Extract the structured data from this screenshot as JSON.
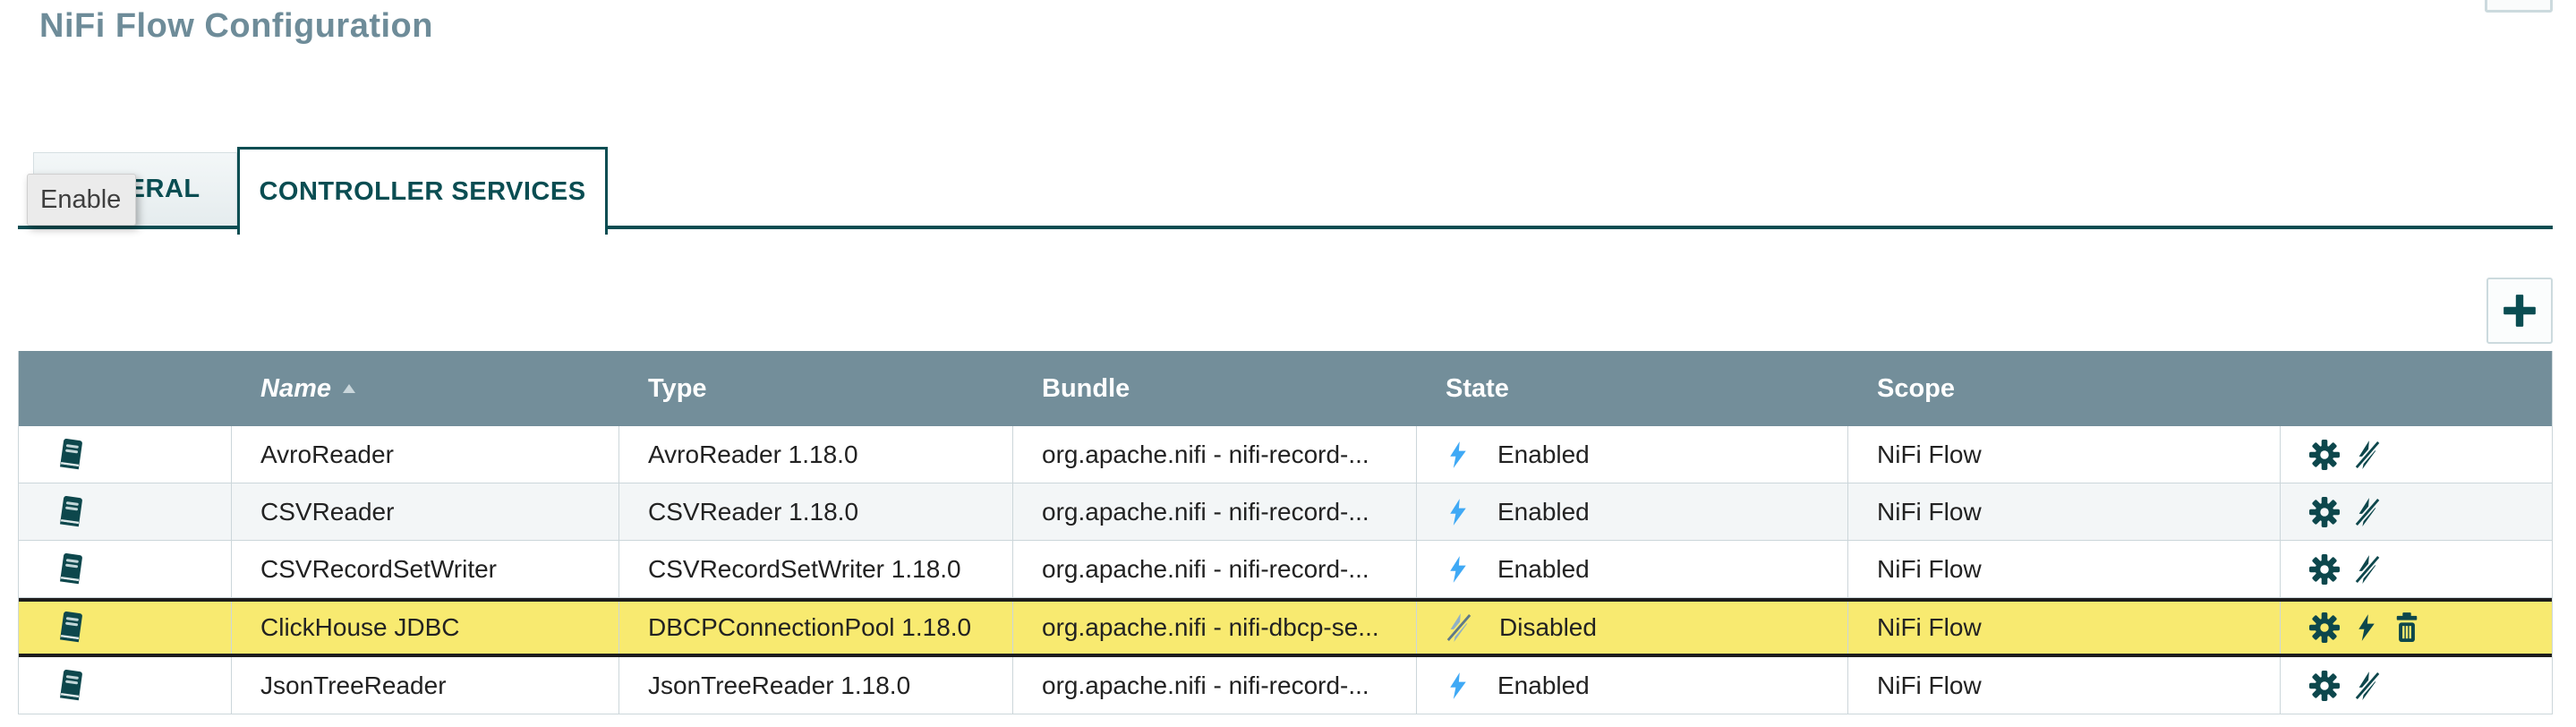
{
  "window": {
    "title": "NiFi Flow Configuration"
  },
  "tabs": [
    {
      "label": "GENERAL",
      "active": false
    },
    {
      "label": "CONTROLLER SERVICES",
      "active": true
    }
  ],
  "tooltip": {
    "text": "Enable"
  },
  "toolbar": {
    "add_button_icon": "plus-icon"
  },
  "table": {
    "headers": {
      "name": "Name",
      "type": "Type",
      "bundle": "Bundle",
      "state": "State",
      "scope": "Scope"
    },
    "sort": {
      "column": "Name",
      "direction": "ascending"
    },
    "rows": [
      {
        "name": "AvroReader",
        "type": "AvroReader 1.18.0",
        "bundle": "org.apache.nifi - nifi-record-...",
        "state": "Enabled",
        "scope": "NiFi Flow",
        "highlighted": false,
        "actions": [
          "configure",
          "disable"
        ]
      },
      {
        "name": "CSVReader",
        "type": "CSVReader 1.18.0",
        "bundle": "org.apache.nifi - nifi-record-...",
        "state": "Enabled",
        "scope": "NiFi Flow",
        "highlighted": false,
        "actions": [
          "configure",
          "disable"
        ]
      },
      {
        "name": "CSVRecordSetWriter",
        "type": "CSVRecordSetWriter 1.18.0",
        "bundle": "org.apache.nifi - nifi-record-...",
        "state": "Enabled",
        "scope": "NiFi Flow",
        "highlighted": false,
        "actions": [
          "configure",
          "disable"
        ]
      },
      {
        "name": "ClickHouse JDBC",
        "type": "DBCPConnectionPool 1.18.0",
        "bundle": "org.apache.nifi - nifi-dbcp-se...",
        "state": "Disabled",
        "scope": "NiFi Flow",
        "highlighted": true,
        "actions": [
          "configure",
          "enable",
          "delete"
        ]
      },
      {
        "name": "JsonTreeReader",
        "type": "JsonTreeReader 1.18.0",
        "bundle": "org.apache.nifi - nifi-record-...",
        "state": "Enabled",
        "scope": "NiFi Flow",
        "highlighted": false,
        "actions": [
          "configure",
          "disable"
        ]
      }
    ]
  },
  "colors": {
    "accent_teal": "#0a4d52",
    "icon_teal": "#0d474c",
    "header_bg": "#738e9a",
    "highlight_yellow": "#f8ea70",
    "zebra_gray": "#f3f6f7",
    "enabled_bolt_blue": "#3fa9f5",
    "disabled_bolt_gray": "#8fb0c6",
    "disabled_slash_gray": "#5f7988",
    "title_color": "#6e8c99"
  }
}
